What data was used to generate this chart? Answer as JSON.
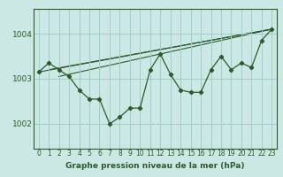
{
  "title": "Graphe pression niveau de la mer (hPa)",
  "bg_color": "#cce8e4",
  "grid_color": "#9ecec8",
  "line_color": "#2d5a2d",
  "xlim": [
    -0.5,
    23.5
  ],
  "ylim": [
    1001.45,
    1004.55
  ],
  "yticks": [
    1002,
    1003,
    1004
  ],
  "xticks": [
    0,
    1,
    2,
    3,
    4,
    5,
    6,
    7,
    8,
    9,
    10,
    11,
    12,
    13,
    14,
    15,
    16,
    17,
    18,
    19,
    20,
    21,
    22,
    23
  ],
  "main_series_x": [
    0,
    1,
    2,
    3,
    4,
    5,
    6,
    7,
    8,
    9,
    10,
    11,
    12,
    13,
    14,
    15,
    16,
    17,
    18,
    19,
    20,
    21,
    22,
    23
  ],
  "main_series_y": [
    1003.15,
    1003.35,
    1003.2,
    1003.05,
    1002.75,
    1002.55,
    1002.55,
    1002.0,
    1002.15,
    1002.35,
    1002.35,
    1003.2,
    1003.55,
    1003.1,
    1002.75,
    1002.7,
    1002.7,
    1003.2,
    1003.5,
    1003.2,
    1003.35,
    1003.25,
    1003.85,
    1004.1
  ],
  "trend_lines": [
    {
      "x": [
        0,
        23
      ],
      "y": [
        1003.15,
        1004.1
      ]
    },
    {
      "x": [
        1,
        23
      ],
      "y": [
        1003.2,
        1004.1
      ]
    },
    {
      "x": [
        2,
        23
      ],
      "y": [
        1003.05,
        1004.1
      ]
    }
  ]
}
